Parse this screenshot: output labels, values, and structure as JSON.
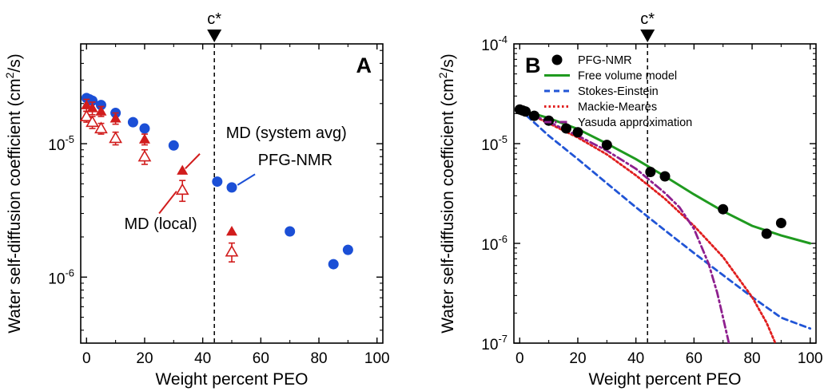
{
  "figure": {
    "c_star_label": "c*"
  },
  "chart_data": [
    {
      "panel_label": "A",
      "type": "scatter",
      "xlabel": "Weight percent PEO",
      "ylabel_main": "Water self-diffusion coefficient (cm",
      "ylabel_sup": "2",
      "ylabel_end": "/s)",
      "xlim": [
        -2,
        102
      ],
      "xticks": [
        0,
        20,
        40,
        60,
        80,
        100
      ],
      "ylim": [
        3.2e-07,
        5.6e-05
      ],
      "y_scale": "log",
      "yticks": [
        {
          "value": 1e-05,
          "base": "10",
          "exp": "-5"
        },
        {
          "value": 1e-06,
          "base": "10",
          "exp": "-6"
        }
      ],
      "c_star_x": 44,
      "colors": {
        "nmr": "#1b4fd6",
        "md": "#d11c1c"
      },
      "series": [
        {
          "name": "PFG-NMR",
          "marker": "circle",
          "color": "#1b4fd6",
          "points": [
            {
              "x": 0,
              "y": 2.2e-05
            },
            {
              "x": 1,
              "y": 2.15e-05
            },
            {
              "x": 2,
              "y": 2.1e-05
            },
            {
              "x": 5,
              "y": 1.95e-05
            },
            {
              "x": 10,
              "y": 1.7e-05
            },
            {
              "x": 16,
              "y": 1.45e-05
            },
            {
              "x": 20,
              "y": 1.3e-05
            },
            {
              "x": 30,
              "y": 9.7e-06
            },
            {
              "x": 45,
              "y": 5.2e-06
            },
            {
              "x": 50,
              "y": 4.7e-06
            },
            {
              "x": 70,
              "y": 2.2e-06
            },
            {
              "x": 85,
              "y": 1.25e-06
            },
            {
              "x": 90,
              "y": 1.6e-06
            }
          ]
        },
        {
          "name": "MD (system avg)",
          "marker": "triangle-filled",
          "color": "#d11c1c",
          "points": [
            {
              "x": 0,
              "y": 1.95e-05,
              "err": [
                1.75e-05,
                2.15e-05
              ]
            },
            {
              "x": 2,
              "y": 1.85e-05,
              "err": [
                1.65e-05,
                2.05e-05
              ]
            },
            {
              "x": 5,
              "y": 1.75e-05,
              "err": [
                1.6e-05,
                1.9e-05
              ]
            },
            {
              "x": 10,
              "y": 1.55e-05,
              "err": [
                1.4e-05,
                1.7e-05
              ]
            },
            {
              "x": 20,
              "y": 1.08e-05,
              "err": [
                9.8e-06,
                1.18e-05
              ]
            },
            {
              "x": 33,
              "y": 6.3e-06
            },
            {
              "x": 50,
              "y": 2.2e-06
            }
          ]
        },
        {
          "name": "MD (local)",
          "marker": "triangle-open",
          "color": "#d11c1c",
          "points": [
            {
              "x": 0,
              "y": 1.6e-05,
              "err": [
                1.45e-05,
                1.75e-05
              ]
            },
            {
              "x": 2,
              "y": 1.45e-05,
              "err": [
                1.3e-05,
                1.6e-05
              ]
            },
            {
              "x": 5,
              "y": 1.3e-05,
              "err": [
                1.18e-05,
                1.42e-05
              ]
            },
            {
              "x": 10,
              "y": 1.1e-05,
              "err": [
                9.8e-06,
                1.22e-05
              ]
            },
            {
              "x": 20,
              "y": 8e-06,
              "err": [
                7e-06,
                9e-06
              ]
            },
            {
              "x": 33,
              "y": 4.5e-06,
              "err": [
                3.7e-06,
                5.3e-06
              ]
            },
            {
              "x": 50,
              "y": 1.55e-06,
              "err": [
                1.3e-06,
                1.8e-06
              ]
            }
          ]
        }
      ],
      "annotations": [
        {
          "text": "MD (system avg)",
          "color": "#d11c1c",
          "at": [
            48,
            1.1e-05
          ],
          "anchor": "start",
          "line_from": [
            39,
            8.4e-06
          ],
          "line_to": [
            34,
            6.5e-06
          ]
        },
        {
          "text": "PFG-NMR",
          "color": "#1b4fd6",
          "at": [
            59,
            6.9e-06
          ],
          "anchor": "start",
          "line_from": [
            58,
            5.9e-06
          ],
          "line_to": [
            52,
            4.9e-06
          ]
        },
        {
          "text": "MD (local)",
          "color": "#d11c1c",
          "at": [
            13,
            2.3e-06
          ],
          "anchor": "start",
          "line_from": [
            25,
            3e-06
          ],
          "line_to": [
            31,
            4.4e-06
          ]
        }
      ]
    },
    {
      "panel_label": "B",
      "type": "line",
      "xlabel": "Weight percent PEO",
      "ylabel_main": "Water self-diffusion coefficient (cm",
      "ylabel_sup": "2",
      "ylabel_end": "/s)",
      "xlim": [
        -2,
        102
      ],
      "xticks": [
        0,
        20,
        40,
        60,
        80,
        100
      ],
      "ylim": [
        1e-07,
        0.0001
      ],
      "y_scale": "log",
      "yticks": [
        {
          "value": 0.0001,
          "base": "10",
          "exp": "-4"
        },
        {
          "value": 1e-05,
          "base": "10",
          "exp": "-5"
        },
        {
          "value": 1e-06,
          "base": "10",
          "exp": "-6"
        },
        {
          "value": 1e-07,
          "base": "10",
          "exp": "-7"
        }
      ],
      "c_star_x": 44,
      "legend_position": "top-right",
      "series": [
        {
          "name": "PFG-NMR",
          "style": "markers",
          "color": "#000000",
          "points": [
            {
              "x": 0,
              "y": 2.2e-05
            },
            {
              "x": 1,
              "y": 2.15e-05
            },
            {
              "x": 2,
              "y": 2.1e-05
            },
            {
              "x": 5,
              "y": 1.9e-05
            },
            {
              "x": 10,
              "y": 1.7e-05
            },
            {
              "x": 16,
              "y": 1.42e-05
            },
            {
              "x": 20,
              "y": 1.3e-05
            },
            {
              "x": 30,
              "y": 9.7e-06
            },
            {
              "x": 45,
              "y": 5.2e-06
            },
            {
              "x": 50,
              "y": 4.7e-06
            },
            {
              "x": 70,
              "y": 2.2e-06
            },
            {
              "x": 85,
              "y": 1.25e-06
            },
            {
              "x": 90,
              "y": 1.6e-06
            }
          ]
        },
        {
          "name": "Free volume model",
          "style": "solid",
          "color": "#1f9a1f",
          "points": [
            {
              "x": 0,
              "y": 2.2e-05
            },
            {
              "x": 10,
              "y": 1.8e-05
            },
            {
              "x": 20,
              "y": 1.4e-05
            },
            {
              "x": 30,
              "y": 1e-05
            },
            {
              "x": 40,
              "y": 7e-06
            },
            {
              "x": 50,
              "y": 4.7e-06
            },
            {
              "x": 60,
              "y": 3.1e-06
            },
            {
              "x": 70,
              "y": 2.1e-06
            },
            {
              "x": 80,
              "y": 1.5e-06
            },
            {
              "x": 90,
              "y": 1.2e-06
            },
            {
              "x": 100,
              "y": 1e-06
            }
          ]
        },
        {
          "name": "Stokes-Einstein",
          "style": "dashed",
          "color": "#2155d6",
          "points": [
            {
              "x": 0,
              "y": 2.2e-05
            },
            {
              "x": 10,
              "y": 1.2e-05
            },
            {
              "x": 20,
              "y": 7e-06
            },
            {
              "x": 30,
              "y": 4e-06
            },
            {
              "x": 40,
              "y": 2.3e-06
            },
            {
              "x": 50,
              "y": 1.35e-06
            },
            {
              "x": 60,
              "y": 8e-07
            },
            {
              "x": 70,
              "y": 4.8e-07
            },
            {
              "x": 80,
              "y": 2.9e-07
            },
            {
              "x": 90,
              "y": 1.8e-07
            },
            {
              "x": 100,
              "y": 1.4e-07
            }
          ]
        },
        {
          "name": "Mackie-Meares",
          "style": "dotted",
          "color": "#e01e1e",
          "points": [
            {
              "x": 0,
              "y": 2.2e-05
            },
            {
              "x": 10,
              "y": 1.6e-05
            },
            {
              "x": 20,
              "y": 1.15e-05
            },
            {
              "x": 30,
              "y": 7.8e-06
            },
            {
              "x": 40,
              "y": 4.8e-06
            },
            {
              "x": 50,
              "y": 2.8e-06
            },
            {
              "x": 60,
              "y": 1.5e-06
            },
            {
              "x": 70,
              "y": 7.3e-07
            },
            {
              "x": 80,
              "y": 2.9e-07
            },
            {
              "x": 85,
              "y": 1.6e-07
            },
            {
              "x": 88,
              "y": 1e-07
            }
          ]
        },
        {
          "name": "Yasuda approximation",
          "style": "dashdot",
          "color": "#8e1f8e",
          "points": [
            {
              "x": 0,
              "y": 2.2e-05
            },
            {
              "x": 10,
              "y": 1.65e-05
            },
            {
              "x": 20,
              "y": 1.2e-05
            },
            {
              "x": 30,
              "y": 8.5e-06
            },
            {
              "x": 40,
              "y": 5.6e-06
            },
            {
              "x": 50,
              "y": 3.2e-06
            },
            {
              "x": 55,
              "y": 2.3e-06
            },
            {
              "x": 60,
              "y": 1.4e-06
            },
            {
              "x": 65,
              "y": 6.3e-07
            },
            {
              "x": 68,
              "y": 3.2e-07
            },
            {
              "x": 70,
              "y": 1.8e-07
            },
            {
              "x": 72,
              "y": 1e-07
            }
          ]
        }
      ]
    }
  ]
}
